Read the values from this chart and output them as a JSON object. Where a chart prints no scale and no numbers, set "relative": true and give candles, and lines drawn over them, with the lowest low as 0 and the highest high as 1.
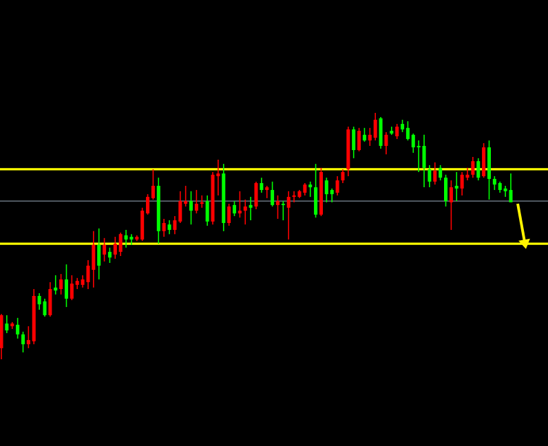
{
  "chart_data": {
    "type": "candlestick",
    "relative": true,
    "categories": [
      null,
      null,
      null,
      null,
      null,
      null,
      null,
      null,
      null,
      null,
      null,
      null,
      null,
      null,
      null,
      null,
      null,
      null,
      null,
      null,
      null,
      null,
      null,
      null,
      null,
      null,
      null,
      null,
      null,
      null,
      null,
      null,
      null,
      null,
      null,
      null,
      null,
      null,
      null,
      null,
      null,
      null,
      null,
      null,
      null,
      null,
      null,
      null,
      null,
      null,
      null,
      null,
      null,
      null,
      null,
      null,
      null,
      null,
      null,
      null,
      null,
      null,
      null,
      null,
      null,
      null,
      null,
      null,
      null,
      null,
      null,
      null,
      null,
      null,
      null,
      null,
      null,
      null,
      null,
      null,
      null,
      null,
      null,
      null,
      null,
      null,
      null,
      null,
      null,
      null,
      null,
      null,
      null,
      null,
      null
    ],
    "ohlc": [
      [
        0.045,
        0.184,
        0,
        0.179
      ],
      [
        0.145,
        0.179,
        0.106,
        0.117
      ],
      [
        0.134,
        0.151,
        0.123,
        0.145
      ],
      [
        0.14,
        0.168,
        0.084,
        0.101
      ],
      [
        0.101,
        0.112,
        0.028,
        0.061
      ],
      [
        0.061,
        0.134,
        0.045,
        0.078
      ],
      [
        0.073,
        0.285,
        0.061,
        0.257
      ],
      [
        0.257,
        0.268,
        0.201,
        0.223
      ],
      [
        0.235,
        0.246,
        0.173,
        0.179
      ],
      [
        0.179,
        0.313,
        0.173,
        0.285
      ],
      [
        0.291,
        0.341,
        0.263,
        0.279
      ],
      [
        0.285,
        0.346,
        0.263,
        0.324
      ],
      [
        0.324,
        0.385,
        0.212,
        0.246
      ],
      [
        0.246,
        0.341,
        0.24,
        0.307
      ],
      [
        0.302,
        0.33,
        0.285,
        0.318
      ],
      [
        0.302,
        0.341,
        0.291,
        0.324
      ],
      [
        0.313,
        0.402,
        0.285,
        0.38
      ],
      [
        0.363,
        0.52,
        0.291,
        0.464
      ],
      [
        0.464,
        0.531,
        0.324,
        0.38
      ],
      [
        0.425,
        0.492,
        0.397,
        0.464
      ],
      [
        0.436,
        0.453,
        0.391,
        0.413
      ],
      [
        0.425,
        0.497,
        0.408,
        0.469
      ],
      [
        0.436,
        0.514,
        0.419,
        0.508
      ],
      [
        0.503,
        0.525,
        0.453,
        0.486
      ],
      [
        0.497,
        0.508,
        0.464,
        0.486
      ],
      [
        0.486,
        0.503,
        0.48,
        0.497
      ],
      [
        0.486,
        0.615,
        0.48,
        0.603
      ],
      [
        0.592,
        0.67,
        0.587,
        0.659
      ],
      [
        0.654,
        0.771,
        0.648,
        0.704
      ],
      [
        0.704,
        0.737,
        0.469,
        0.52
      ],
      [
        0.52,
        0.57,
        0.497,
        0.553
      ],
      [
        0.547,
        0.564,
        0.508,
        0.525
      ],
      [
        0.525,
        0.581,
        0.508,
        0.564
      ],
      [
        0.559,
        0.682,
        0.553,
        0.642
      ],
      [
        0.631,
        0.704,
        0.62,
        0.642
      ],
      [
        0.642,
        0.682,
        0.547,
        0.603
      ],
      [
        0.603,
        0.687,
        0.592,
        0.631
      ],
      [
        0.631,
        0.665,
        0.615,
        0.637
      ],
      [
        0.642,
        0.665,
        0.542,
        0.559
      ],
      [
        0.559,
        0.76,
        0.547,
        0.749
      ],
      [
        0.743,
        0.81,
        0.665,
        0.754
      ],
      [
        0.754,
        0.793,
        0.52,
        0.553
      ],
      [
        0.553,
        0.631,
        0.542,
        0.62
      ],
      [
        0.626,
        0.642,
        0.581,
        0.592
      ],
      [
        0.592,
        0.682,
        0.575,
        0.603
      ],
      [
        0.603,
        0.648,
        0.547,
        0.62
      ],
      [
        0.626,
        0.659,
        0.564,
        0.615
      ],
      [
        0.62,
        0.721,
        0.609,
        0.715
      ],
      [
        0.715,
        0.737,
        0.676,
        0.687
      ],
      [
        0.687,
        0.704,
        0.654,
        0.698
      ],
      [
        0.687,
        0.721,
        0.62,
        0.626
      ],
      [
        0.626,
        0.665,
        0.57,
        0.642
      ],
      [
        0.631,
        0.642,
        0.564,
        0.626
      ],
      [
        0.615,
        0.682,
        0.486,
        0.659
      ],
      [
        0.659,
        0.682,
        0.637,
        0.665
      ],
      [
        0.659,
        0.687,
        0.654,
        0.682
      ],
      [
        0.676,
        0.715,
        0.665,
        0.709
      ],
      [
        0.709,
        0.721,
        0.659,
        0.698
      ],
      [
        0.698,
        0.793,
        0.575,
        0.587
      ],
      [
        0.587,
        0.777,
        0.581,
        0.76
      ],
      [
        0.726,
        0.737,
        0.637,
        0.67
      ],
      [
        0.687,
        0.693,
        0.637,
        0.67
      ],
      [
        0.676,
        0.743,
        0.665,
        0.726
      ],
      [
        0.726,
        0.771,
        0.715,
        0.76
      ],
      [
        0.771,
        0.944,
        0.743,
        0.933
      ],
      [
        0.933,
        0.944,
        0.816,
        0.849
      ],
      [
        0.849,
        0.939,
        0.844,
        0.927
      ],
      [
        0.911,
        0.939,
        0.883,
        0.888
      ],
      [
        0.888,
        0.939,
        0.866,
        0.911
      ],
      [
        0.899,
        1,
        0.888,
        0.972
      ],
      [
        0.978,
        0.983,
        0.855,
        0.866
      ],
      [
        0.866,
        0.922,
        0.832,
        0.911
      ],
      [
        0.927,
        0.944,
        0.911,
        0.916
      ],
      [
        0.905,
        0.955,
        0.894,
        0.944
      ],
      [
        0.955,
        0.972,
        0.922,
        0.933
      ],
      [
        0.939,
        0.966,
        0.888,
        0.894
      ],
      [
        0.911,
        0.916,
        0.838,
        0.86
      ],
      [
        0.866,
        0.888,
        0.76,
        0.86
      ],
      [
        0.866,
        0.911,
        0.698,
        0.777
      ],
      [
        0.771,
        0.788,
        0.698,
        0.721
      ],
      [
        0.721,
        0.799,
        0.709,
        0.765
      ],
      [
        0.777,
        0.788,
        0.726,
        0.737
      ],
      [
        0.737,
        0.749,
        0.62,
        0.642
      ],
      [
        0.637,
        0.726,
        0.525,
        0.698
      ],
      [
        0.704,
        0.76,
        0.642,
        0.693
      ],
      [
        0.693,
        0.76,
        0.665,
        0.749
      ],
      [
        0.737,
        0.777,
        0.726,
        0.749
      ],
      [
        0.749,
        0.821,
        0.737,
        0.804
      ],
      [
        0.804,
        0.816,
        0.726,
        0.737
      ],
      [
        0.743,
        0.877,
        0.737,
        0.86
      ],
      [
        0.86,
        0.888,
        0.648,
        0.732
      ],
      [
        0.732,
        0.743,
        0.687,
        0.709
      ],
      [
        0.715,
        0.721,
        0.676,
        0.687
      ],
      [
        0.693,
        0.704,
        0.659,
        0.682
      ],
      [
        0.687,
        0.754,
        0.637,
        0.637
      ]
    ],
    "colors": [
      "#ff0000",
      "#00ff00",
      "#ff0000",
      "#00ff00",
      "#00ff00",
      "#ff0000",
      "#ff0000",
      "#00ff00",
      "#00ff00",
      "#ff0000",
      "#00ff00",
      "#ff0000",
      "#00ff00",
      "#ff0000",
      "#ff0000",
      "#ff0000",
      "#ff0000",
      "#ff0000",
      "#00ff00",
      "#ff0000",
      "#00ff00",
      "#ff0000",
      "#ff0000",
      "#00ff00",
      "#00ff00",
      "#ff0000",
      "#ff0000",
      "#ff0000",
      "#ff0000",
      "#00ff00",
      "#ff0000",
      "#00ff00",
      "#ff0000",
      "#ff0000",
      "#ff0000",
      "#00ff00",
      "#ff0000",
      "#ff0000",
      "#00ff00",
      "#ff0000",
      "#ff0000",
      "#00ff00",
      "#ff0000",
      "#00ff00",
      "#ff0000",
      "#ff0000",
      "#00ff00",
      "#ff0000",
      "#00ff00",
      "#ff0000",
      "#00ff00",
      "#ff0000",
      "#00ff00",
      "#ff0000",
      "#ff0000",
      "#ff0000",
      "#ff0000",
      "#00ff00",
      "#00ff00",
      "#ff0000",
      "#00ff00",
      "#00ff00",
      "#ff0000",
      "#ff0000",
      "#ff0000",
      "#00ff00",
      "#ff0000",
      "#00ff00",
      "#ff0000",
      "#ff0000",
      "#00ff00",
      "#ff0000",
      "#00ff00",
      "#ff0000",
      "#00ff00",
      "#00ff00",
      "#00ff00",
      "#00ff00",
      "#00ff00",
      "#00ff00",
      "#ff0000",
      "#00ff00",
      "#00ff00",
      "#ff0000",
      "#00ff00",
      "#ff0000",
      "#ff0000",
      "#ff0000",
      "#00ff00",
      "#ff0000",
      "#00ff00",
      "#00ff00",
      "#00ff00",
      "#00ff00",
      "#00ff00"
    ],
    "ref_lines": [
      {
        "axis": "y",
        "value": 0.771,
        "color": "#ffff00"
      },
      {
        "axis": "y",
        "value": 0.469,
        "color": "#ffff00"
      },
      {
        "axis": "y",
        "value": 0.642,
        "color": "#7f8c9a"
      }
    ]
  }
}
